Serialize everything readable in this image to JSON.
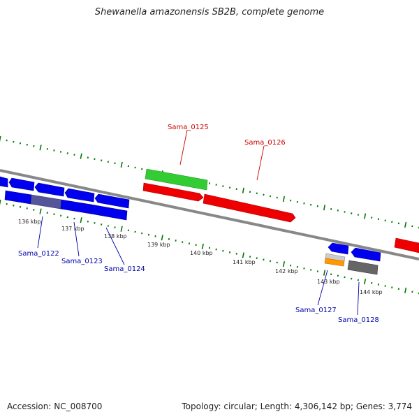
{
  "header": {
    "title": "Shewanella amazonensis SB2B, complete genome"
  },
  "footer": {
    "accession": "Accession: NC_008700",
    "summary": "Topology: circular; Length: 4,306,142 bp; Genes: 3,774"
  },
  "colors": {
    "forward_gene": "#ee0000",
    "reverse_gene": "#0000ee",
    "rna_gene": "#33cc33",
    "pseudo_gene": "#666666",
    "orange_gene": "#ff9900",
    "backbone": "#888888",
    "tick": "#007700",
    "label_forward": "#cc0000",
    "label_reverse": "#0000aa"
  },
  "ruler_labels": [
    {
      "label": "136 kbp"
    },
    {
      "label": "137 kbp"
    },
    {
      "label": "138 kbp"
    },
    {
      "label": "139 kbp"
    },
    {
      "label": "140 kbp"
    },
    {
      "label": "141 kbp"
    },
    {
      "label": "142 kbp"
    },
    {
      "label": "143 kbp"
    },
    {
      "label": "144 kbp"
    }
  ],
  "gene_labels": [
    {
      "name": "Sama_0122",
      "strand": "reverse"
    },
    {
      "name": "Sama_0123",
      "strand": "reverse"
    },
    {
      "name": "Sama_0124",
      "strand": "reverse"
    },
    {
      "name": "Sama_0125",
      "strand": "forward"
    },
    {
      "name": "Sama_0126",
      "strand": "forward"
    },
    {
      "name": "Sama_0127",
      "strand": "reverse"
    },
    {
      "name": "Sama_0128",
      "strand": "reverse"
    }
  ]
}
